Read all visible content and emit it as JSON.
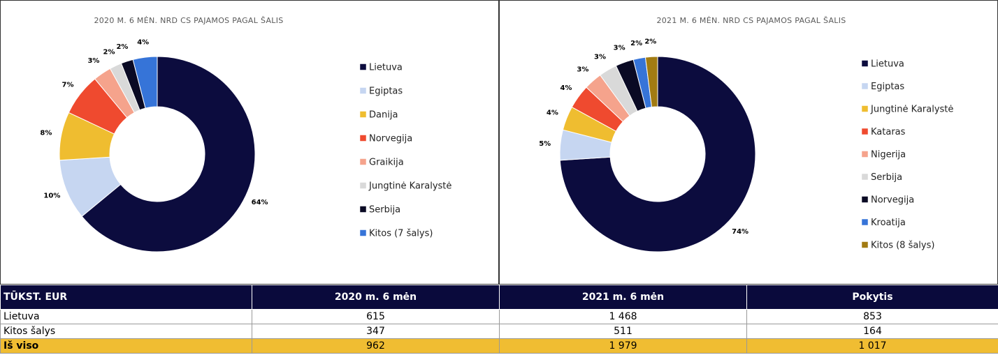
{
  "chart_data": [
    {
      "type": "donut",
      "title": "2020 M. 6 MĖN. NRD CS PAJAMOS PAGAL ŠALIS",
      "categories": [
        "Lietuva",
        "Egiptas",
        "Danija",
        "Norvegija",
        "Graikija",
        "Jungtinė Karalystė",
        "Serbija",
        "Kitos (7 šalys)"
      ],
      "values": [
        64,
        10,
        8,
        7,
        3,
        2,
        2,
        4
      ],
      "value_labels": [
        "64%",
        "10%",
        "8%",
        "7%",
        "3%",
        "2%",
        "2%",
        "4%"
      ],
      "colors": [
        "#0c0c3e",
        "#c6d6f1",
        "#efbd30",
        "#ef4a2f",
        "#f5a38c",
        "#d9d9d9",
        "#0a0a24",
        "#3674d8"
      ]
    },
    {
      "type": "donut",
      "title": "2021 M. 6 MĖN. NRD CS PAJAMOS PAGAL ŠALIS",
      "categories": [
        "Lietuva",
        "Egiptas",
        "Jungtinė Karalystė",
        "Kataras",
        "Nigerija",
        "Serbija",
        "Norvegija",
        "Kroatija",
        "Kitos (8 šalys)"
      ],
      "values": [
        74,
        5,
        4,
        4,
        3,
        3,
        3,
        2,
        2
      ],
      "value_labels": [
        "74%",
        "5%",
        "4%",
        "4%",
        "3%",
        "3%",
        "3%",
        "2%",
        "2%"
      ],
      "colors": [
        "#0c0c3e",
        "#c6d6f1",
        "#efbd30",
        "#ef4a2f",
        "#f5a38c",
        "#d9d9d9",
        "#0a0a24",
        "#3674d8",
        "#a27b12"
      ]
    }
  ],
  "table": {
    "header": [
      "TŪKST. EUR",
      "2020 m. 6 mėn",
      "2021 m. 6 mėn",
      "Pokytis"
    ],
    "rows": [
      [
        "Lietuva",
        "615",
        "1 468",
        "853"
      ],
      [
        "Kitos šalys",
        "347",
        "511",
        "164"
      ],
      [
        "Iš viso",
        "962",
        "1 979",
        "1 017"
      ]
    ]
  }
}
